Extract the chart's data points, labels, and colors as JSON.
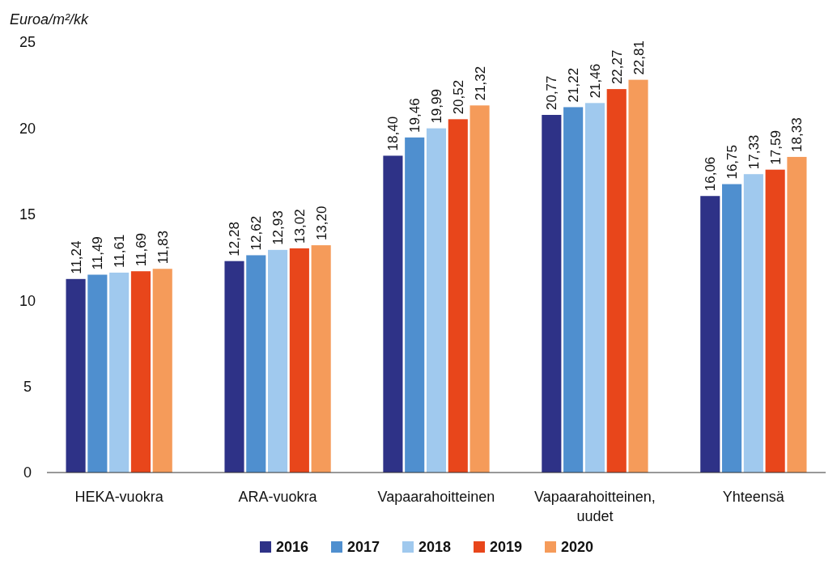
{
  "chart_data": {
    "type": "bar",
    "ylabel": "Euroa/m²/kk",
    "categories": [
      "HEKA-vuokra",
      "ARA-vuokra",
      "Vapaarahoitteinen",
      "Vapaarahoitteinen, uudet",
      "Yhteensä"
    ],
    "series": [
      {
        "name": "2016",
        "color": "#2e3287",
        "values": [
          11.24,
          12.28,
          18.4,
          20.77,
          16.06
        ],
        "value_labels": [
          "11,24",
          "12,28",
          "18,40",
          "20,77",
          "16,06"
        ]
      },
      {
        "name": "2017",
        "color": "#4f8fcf",
        "values": [
          11.49,
          12.62,
          19.46,
          21.22,
          16.75
        ],
        "value_labels": [
          "11,49",
          "12,62",
          "19,46",
          "21,22",
          "16,75"
        ]
      },
      {
        "name": "2018",
        "color": "#a0c9ee",
        "values": [
          11.61,
          12.93,
          19.99,
          21.46,
          17.33
        ],
        "value_labels": [
          "11,61",
          "12,93",
          "19,99",
          "21,46",
          "17,33"
        ]
      },
      {
        "name": "2019",
        "color": "#e8461b",
        "values": [
          11.69,
          13.02,
          20.52,
          22.27,
          17.59
        ],
        "value_labels": [
          "11,69",
          "13,02",
          "20,52",
          "22,27",
          "17,59"
        ]
      },
      {
        "name": "2020",
        "color": "#f59b5a",
        "values": [
          11.83,
          13.2,
          21.32,
          22.81,
          18.33
        ],
        "value_labels": [
          "11,83",
          "13,20",
          "21,32",
          "22,81",
          "18,33"
        ]
      }
    ],
    "ylim": [
      0,
      25
    ],
    "yticks": [
      0,
      5,
      10,
      15,
      20,
      25
    ],
    "grid": false,
    "legend": "bottom"
  }
}
